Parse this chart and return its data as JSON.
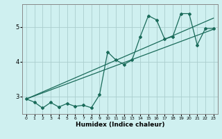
{
  "xlabel": "Humidex (Indice chaleur)",
  "ylabel": "",
  "bg_color": "#cff0f0",
  "line_color": "#1a6b5a",
  "grid_color": "#aacece",
  "x_data": [
    0,
    1,
    2,
    3,
    4,
    5,
    6,
    7,
    8,
    9,
    10,
    11,
    12,
    13,
    14,
    15,
    16,
    17,
    18,
    19,
    20,
    21,
    22,
    23
  ],
  "y_data": [
    2.93,
    2.84,
    2.67,
    2.83,
    2.7,
    2.8,
    2.72,
    2.75,
    2.68,
    3.05,
    4.28,
    4.05,
    3.92,
    4.05,
    4.72,
    5.32,
    5.2,
    4.65,
    4.72,
    5.38,
    5.38,
    4.48,
    4.95,
    4.95
  ],
  "trend1_x": [
    0,
    23
  ],
  "trend1_y": [
    2.93,
    4.93
  ],
  "trend2_x": [
    0,
    23
  ],
  "trend2_y": [
    2.93,
    5.25
  ],
  "xlim": [
    -0.5,
    23.5
  ],
  "ylim": [
    2.5,
    5.65
  ],
  "yticks": [
    3,
    4,
    5
  ],
  "xticks": [
    0,
    1,
    2,
    3,
    4,
    5,
    6,
    7,
    8,
    9,
    10,
    11,
    12,
    13,
    14,
    15,
    16,
    17,
    18,
    19,
    20,
    21,
    22,
    23
  ]
}
